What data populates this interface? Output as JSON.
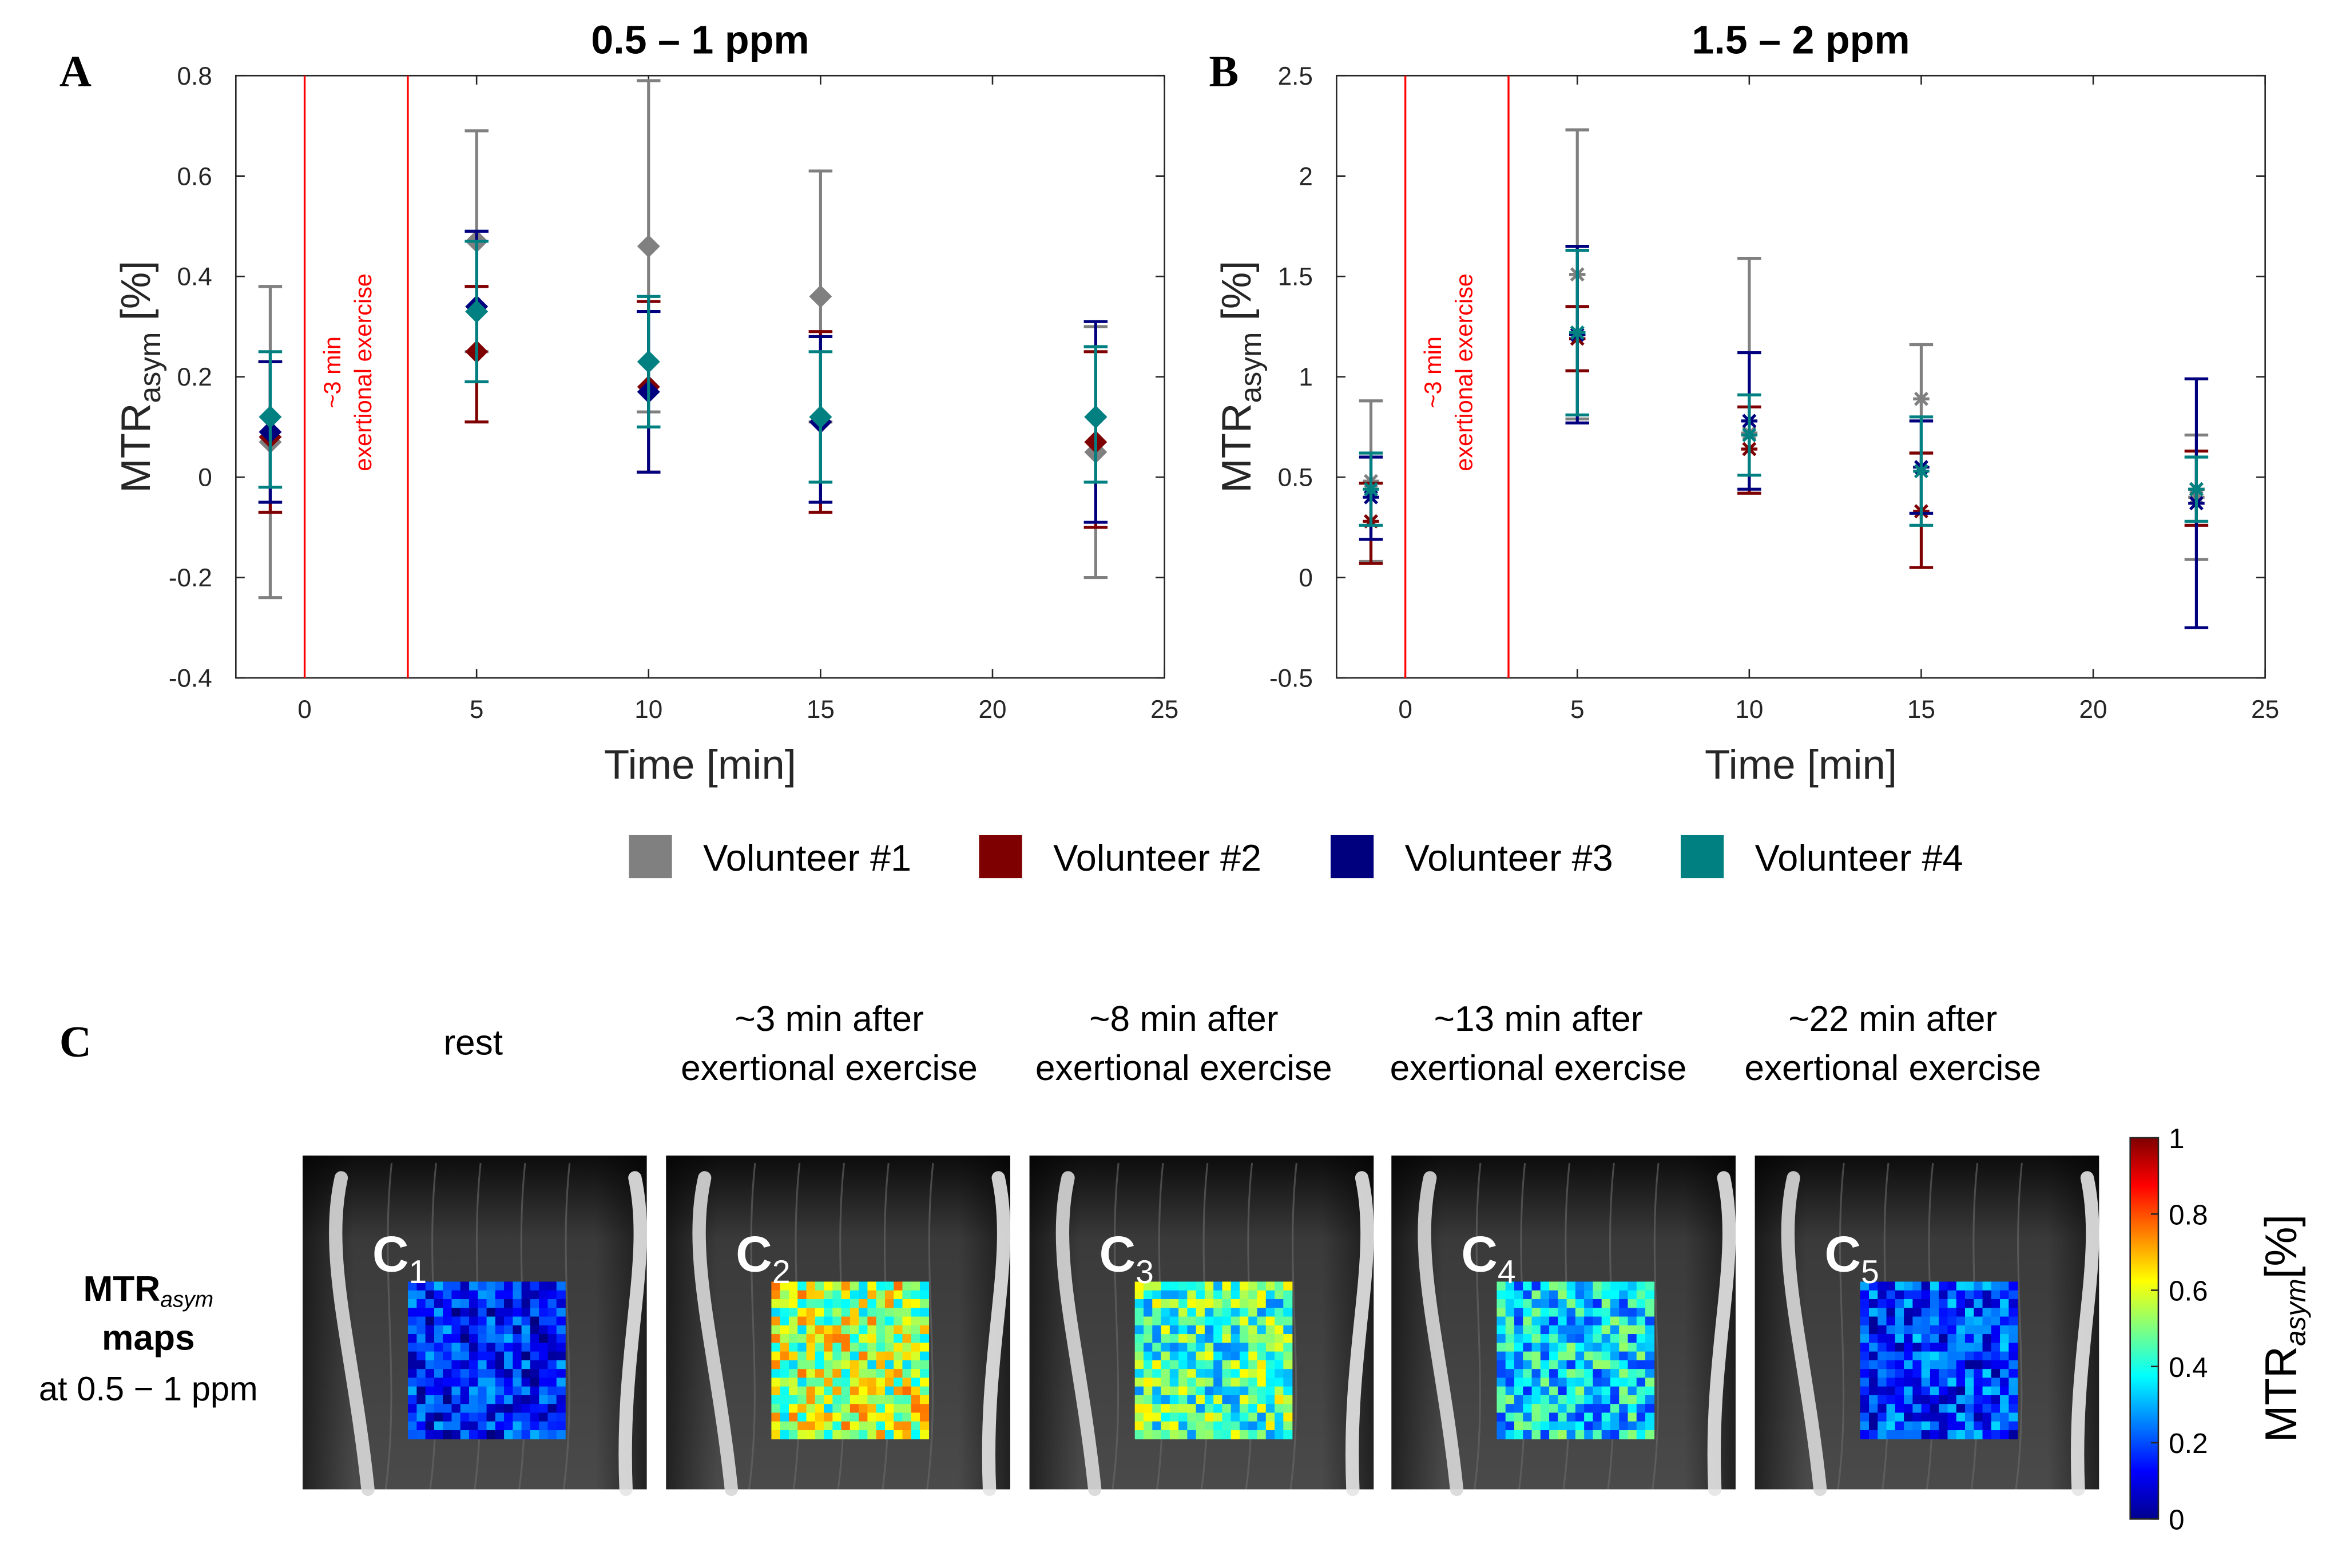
{
  "colors": {
    "vol1": "#808080",
    "vol2": "#7f0000",
    "vol3": "#00007f",
    "vol4": "#008080",
    "exercise_line": "#ff0000"
  },
  "legend": [
    {
      "label": "Volunteer #1",
      "color": "#808080"
    },
    {
      "label": "Volunteer #2",
      "color": "#7f0000"
    },
    {
      "label": "Volunteer #3",
      "color": "#00007f"
    },
    {
      "label": "Volunteer #4",
      "color": "#008080"
    }
  ],
  "chart_data": [
    {
      "panel": "A",
      "type": "scatter",
      "marker": "diamond",
      "title": "0.5 – 1 ppm",
      "xlabel": "Time [min]",
      "ylabel_main": "MTR",
      "ylabel_sub": "asym",
      "ylabel_unit": "[%]",
      "xlim": [
        -2,
        25
      ],
      "ylim": [
        -0.4,
        0.8
      ],
      "xticks": [
        0,
        5,
        10,
        15,
        20,
        25
      ],
      "yticks": [
        -0.4,
        -0.2,
        0,
        0.2,
        0.4,
        0.6,
        0.8
      ],
      "ytick_labels": [
        "-0.4",
        "-0.2",
        "0",
        "0.2",
        "0.4",
        "0.6",
        "0.8"
      ],
      "exercise": {
        "start": 0,
        "end": 3,
        "label_line1": "~3 min",
        "label_line2": "exertional exercise"
      },
      "series": [
        {
          "name": "Volunteer #1",
          "x": [
            -1,
            5,
            10,
            15,
            23
          ],
          "y": [
            0.07,
            0.47,
            0.46,
            0.36,
            0.05
          ],
          "low": [
            -0.24,
            0.25,
            0.13,
            0.11,
            -0.2
          ],
          "high": [
            0.38,
            0.69,
            0.79,
            0.61,
            0.3
          ]
        },
        {
          "name": "Volunteer #2",
          "x": [
            -1,
            5,
            10,
            15,
            23
          ],
          "y": [
            0.08,
            0.25,
            0.18,
            0.11,
            0.07
          ],
          "low": [
            -0.07,
            0.11,
            0.01,
            -0.07,
            -0.1
          ],
          "high": [
            0.23,
            0.38,
            0.35,
            0.29,
            0.25
          ]
        },
        {
          "name": "Volunteer #3",
          "x": [
            -1,
            5,
            10,
            15,
            23
          ],
          "y": [
            0.09,
            0.34,
            0.17,
            0.11,
            0.12
          ],
          "low": [
            -0.05,
            0.19,
            0.01,
            -0.05,
            -0.09
          ],
          "high": [
            0.23,
            0.49,
            0.33,
            0.28,
            0.31
          ]
        },
        {
          "name": "Volunteer #4",
          "x": [
            -1,
            5,
            10,
            15,
            23
          ],
          "y": [
            0.12,
            0.33,
            0.23,
            0.12,
            0.12
          ],
          "low": [
            -0.02,
            0.19,
            0.1,
            -0.01,
            -0.01
          ],
          "high": [
            0.25,
            0.47,
            0.36,
            0.25,
            0.26
          ]
        }
      ]
    },
    {
      "panel": "B",
      "type": "scatter",
      "marker": "asterisk",
      "title": "1.5 – 2 ppm",
      "xlabel": "Time [min]",
      "ylabel_main": "MTR",
      "ylabel_sub": "asym",
      "ylabel_unit": "[%]",
      "xlim": [
        -2,
        25
      ],
      "ylim": [
        -0.5,
        2.5
      ],
      "xticks": [
        0,
        5,
        10,
        15,
        20,
        25
      ],
      "yticks": [
        -0.5,
        0,
        0.5,
        1,
        1.5,
        2,
        2.5
      ],
      "ytick_labels": [
        "-0.5",
        "0",
        "0.5",
        "1",
        "1.5",
        "2",
        "2.5"
      ],
      "exercise": {
        "start": 0,
        "end": 3,
        "label_line1": "~3 min",
        "label_line2": "exertional exercise"
      },
      "series": [
        {
          "name": "Volunteer #1",
          "x": [
            -1,
            5,
            10,
            15,
            23
          ],
          "y": [
            0.48,
            1.51,
            0.72,
            0.89,
            0.4
          ],
          "low": [
            0.08,
            0.79,
            0.42,
            0.62,
            0.09
          ],
          "high": [
            0.88,
            2.23,
            1.59,
            1.16,
            0.71
          ]
        },
        {
          "name": "Volunteer #2",
          "x": [
            -1,
            5,
            10,
            15,
            23
          ],
          "y": [
            0.28,
            1.19,
            0.64,
            0.33,
            0.44
          ],
          "low": [
            0.07,
            1.03,
            0.42,
            0.05,
            0.26
          ],
          "high": [
            0.47,
            1.35,
            0.85,
            0.62,
            0.63
          ]
        },
        {
          "name": "Volunteer #3",
          "x": [
            -1,
            5,
            10,
            15,
            23
          ],
          "y": [
            0.4,
            1.21,
            0.78,
            0.55,
            0.37
          ],
          "low": [
            0.19,
            0.77,
            0.44,
            0.32,
            -0.25
          ],
          "high": [
            0.6,
            1.65,
            1.12,
            0.78,
            0.99
          ]
        },
        {
          "name": "Volunteer #4",
          "x": [
            -1,
            5,
            10,
            15,
            23
          ],
          "y": [
            0.44,
            1.22,
            0.71,
            0.53,
            0.44
          ],
          "low": [
            0.26,
            0.81,
            0.51,
            0.26,
            0.28
          ],
          "high": [
            0.62,
            1.63,
            0.91,
            0.8,
            0.6
          ]
        }
      ]
    }
  ],
  "panel_c": {
    "label": "C",
    "row_label_main": "MTR",
    "row_label_sub": "asym",
    "row_label_line2": "maps",
    "row_label_line3": "at 0.5 − 1 ppm",
    "columns": [
      {
        "title1": "rest",
        "title2": "",
        "tag": "C",
        "sub": "1",
        "mean": 0.15
      },
      {
        "title1": "~3 min after",
        "title2": "exertional exercise",
        "tag": "C",
        "sub": "2",
        "mean": 0.55
      },
      {
        "title1": "~8 min after",
        "title2": "exertional exercise",
        "tag": "C",
        "sub": "3",
        "mean": 0.45
      },
      {
        "title1": "~13 min after",
        "title2": "exertional exercise",
        "tag": "C",
        "sub": "4",
        "mean": 0.35
      },
      {
        "title1": "~22 min after",
        "title2": "exertional exercise",
        "tag": "C",
        "sub": "5",
        "mean": 0.18
      }
    ],
    "colorbar": {
      "ticks": [
        0,
        0.2,
        0.4,
        0.6,
        0.8,
        1
      ],
      "tick_labels": [
        "0",
        "0.2",
        "0.4",
        "0.6",
        "0.8",
        "1"
      ],
      "label_main": "MTR",
      "label_sub": "asym",
      "label_unit": "[%]"
    }
  }
}
